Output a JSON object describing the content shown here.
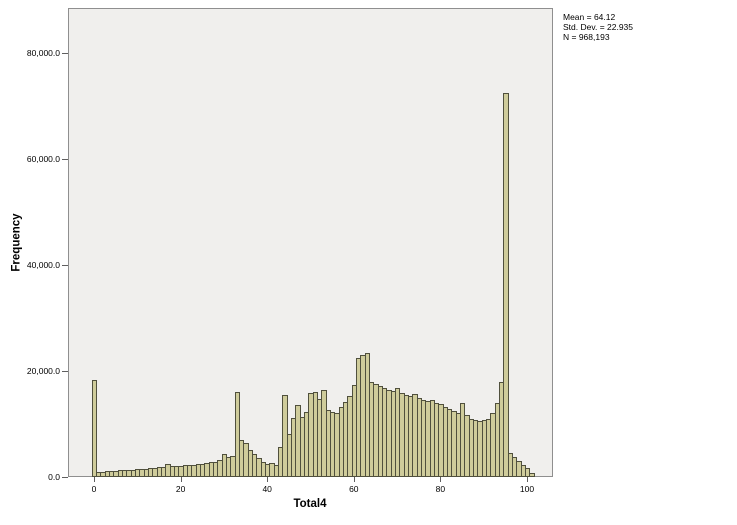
{
  "stats": {
    "mean": "Mean = 64.12",
    "std_dev": "Std. Dev. = 22.935",
    "n": "N = 968,193"
  },
  "colors": {
    "bar_fill": "#cfcc9b",
    "bar_border": "#50503d",
    "plot_background": "#f0efed",
    "frame_border": "#8f8f8f",
    "tick_color": "#5f5f5f"
  },
  "chart_data": {
    "type": "bar",
    "subtype": "histogram",
    "title": "",
    "xlabel": "Total4",
    "ylabel": "Frequency",
    "legend": "none",
    "grid": "off",
    "xlim": [
      -6,
      106
    ],
    "ylim": [
      0,
      88500
    ],
    "bin_start": 0,
    "bin_width": 1,
    "x_ticks": {
      "values": [
        0,
        20,
        40,
        60,
        80,
        100
      ],
      "labels": [
        "0",
        "20",
        "40",
        "60",
        "80",
        "100"
      ]
    },
    "y_ticks": {
      "values": [
        0,
        20000,
        40000,
        60000,
        80000
      ],
      "labels": [
        "0.0",
        "20,000.0",
        "40,000.0",
        "60,000.0",
        "80,000.0"
      ]
    },
    "values": [
      18400,
      900,
      1000,
      1050,
      1100,
      1200,
      1250,
      1300,
      1350,
      1400,
      1450,
      1500,
      1600,
      1650,
      1700,
      1800,
      1900,
      2500,
      2000,
      2100,
      2150,
      2200,
      2250,
      2300,
      2400,
      2500,
      2600,
      2800,
      2900,
      3200,
      4300,
      3700,
      3900,
      16100,
      7000,
      6400,
      5100,
      4300,
      3600,
      2900,
      2500,
      2600,
      2300,
      5700,
      15500,
      8100,
      11200,
      13600,
      11400,
      12300,
      15800,
      16100,
      14800,
      16400,
      12600,
      12300,
      12000,
      13300,
      14200,
      15200,
      17400,
      22500,
      23000,
      23400,
      18000,
      17500,
      17200,
      16800,
      16400,
      16300,
      16800,
      15800,
      15500,
      15300,
      15600,
      15000,
      14600,
      14300,
      14500,
      14000,
      13700,
      13300,
      12800,
      12400,
      12000,
      13900,
      11700,
      11000,
      10700,
      10500,
      10800,
      11000,
      12100,
      13900,
      18000,
      72500,
      4500,
      3800,
      3000,
      2300,
      1700,
      800
    ]
  }
}
